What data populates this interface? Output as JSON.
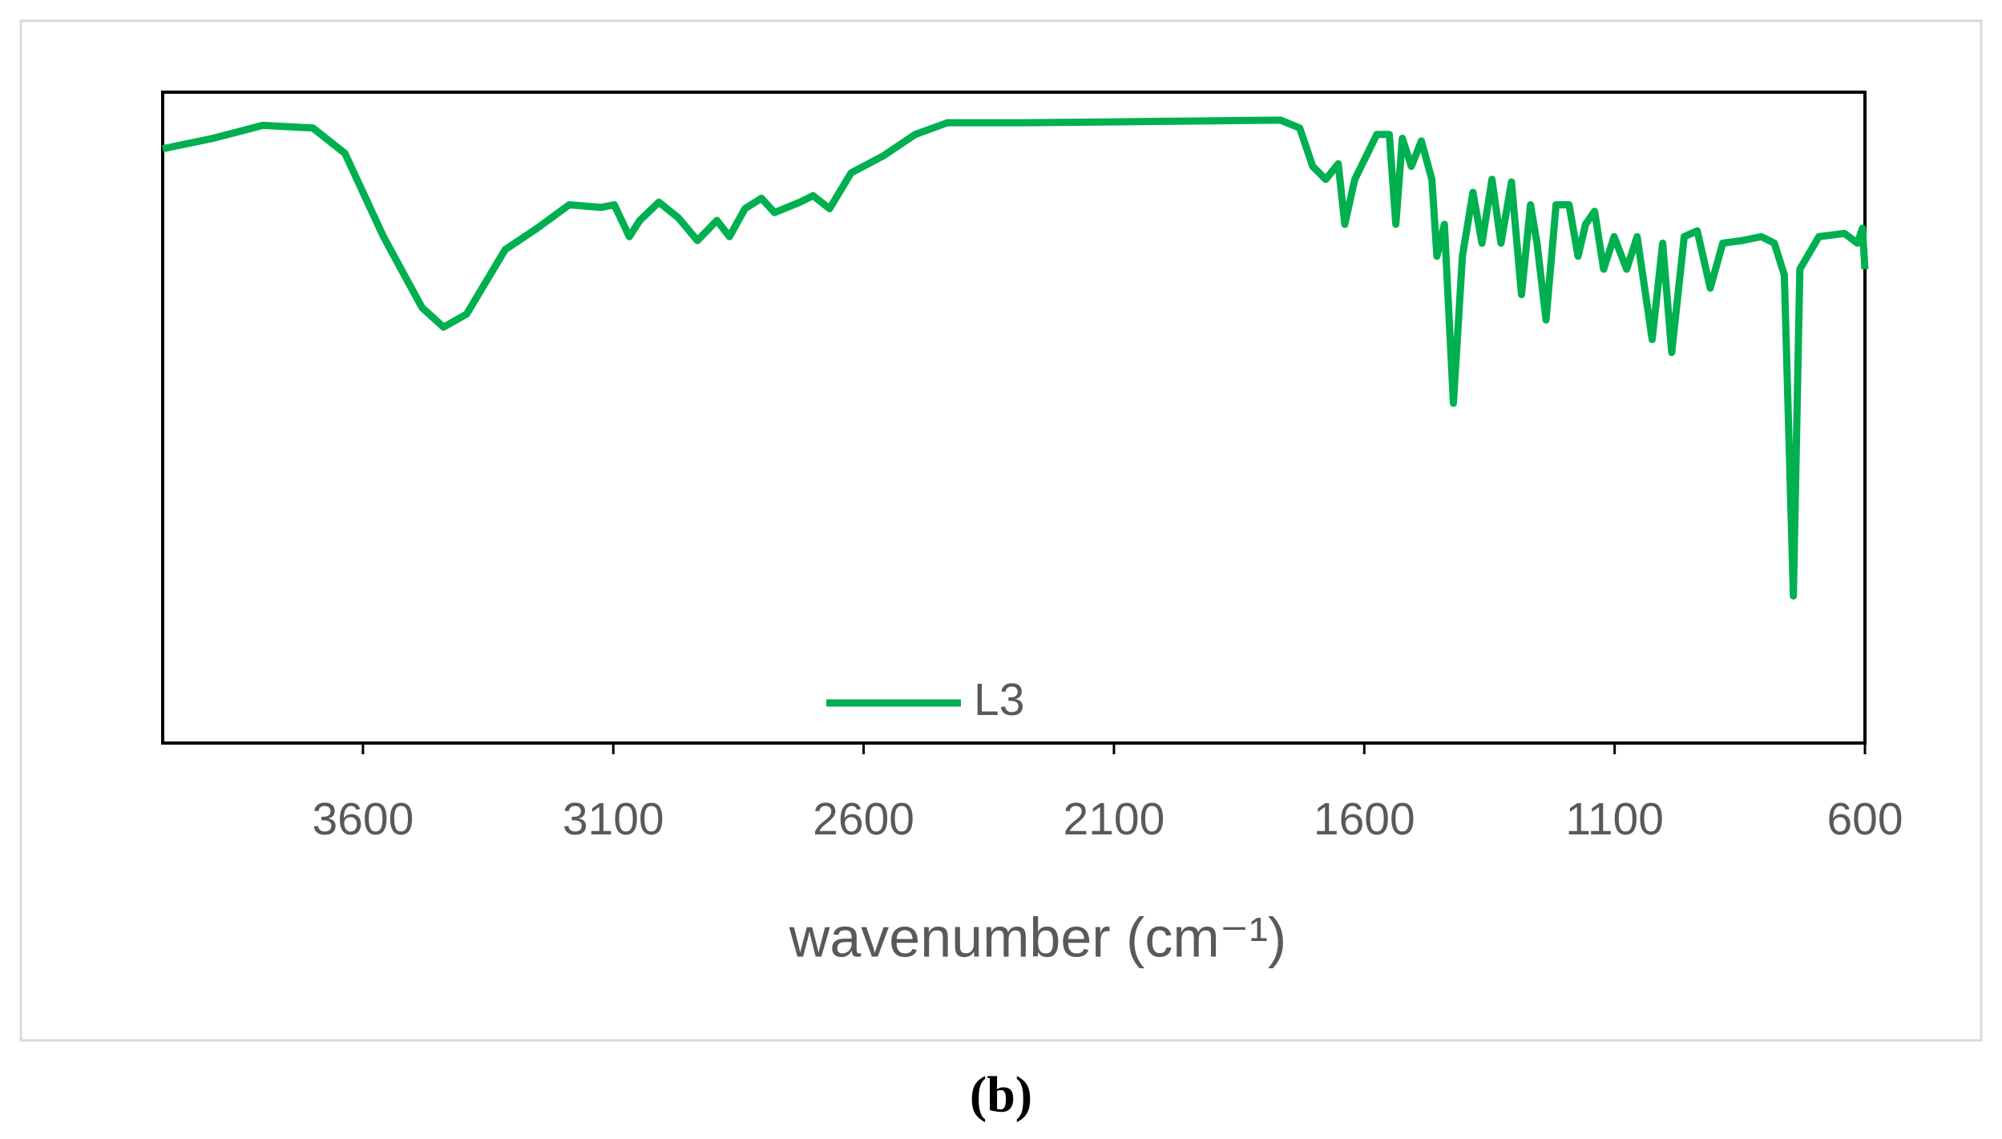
{
  "chart_data": {
    "type": "line",
    "caption": "(b)",
    "xlabel": "wavenumber (cm⁻¹)",
    "x": [
      4000,
      3900,
      3800,
      3700,
      3636,
      3559,
      3482,
      3439,
      3393,
      3316,
      3252,
      3188,
      3124,
      3098,
      3068,
      3047,
      3009,
      2970,
      2932,
      2893,
      2868,
      2837,
      2804,
      2778,
      2727,
      2701,
      2668,
      2625,
      2561,
      2497,
      2433,
      2279,
      2023,
      1767,
      1729,
      1703,
      1677,
      1652,
      1639,
      1619,
      1575,
      1550,
      1537,
      1524,
      1506,
      1486,
      1465,
      1455,
      1440,
      1422,
      1404,
      1383,
      1365,
      1345,
      1327,
      1306,
      1286,
      1268,
      1255,
      1237,
      1217,
      1191,
      1173,
      1158,
      1140,
      1122,
      1101,
      1076,
      1055,
      1025,
      1004,
      986,
      961,
      935,
      909,
      884,
      845,
      807,
      781,
      761,
      743,
      730,
      692,
      641,
      615,
      605,
      600
    ],
    "series": [
      {
        "name": "L3",
        "color": "#00b050",
        "values": [
          91.3,
          92.9,
          94.9,
          94.5,
          90.6,
          77.8,
          66.9,
          63.9,
          65.9,
          75.8,
          79.1,
          82.7,
          82.3,
          82.7,
          77.8,
          80.3,
          83.1,
          80.7,
          77.2,
          80.3,
          77.8,
          82.1,
          83.7,
          81.5,
          83.1,
          84.1,
          82.1,
          87.6,
          90.2,
          93.5,
          95.3,
          95.3,
          95.5,
          95.7,
          94.5,
          88.6,
          86.6,
          89.0,
          79.7,
          86.6,
          93.5,
          93.5,
          79.7,
          92.9,
          88.6,
          92.5,
          86.6,
          74.8,
          79.7,
          52.2,
          74.8,
          84.6,
          76.8,
          86.6,
          76.8,
          86.2,
          68.9,
          82.7,
          76.8,
          65.0,
          82.7,
          82.7,
          74.8,
          79.7,
          81.7,
          72.8,
          77.8,
          72.8,
          77.8,
          62.0,
          76.8,
          60.0,
          77.8,
          78.7,
          69.9,
          76.8,
          77.2,
          77.8,
          76.8,
          71.9,
          22.6,
          72.8,
          77.8,
          78.3,
          76.8,
          79.1,
          72.8
        ]
      }
    ],
    "xlim": [
      4000,
      600
    ],
    "xticks": [
      3600,
      3100,
      2600,
      2100,
      1600,
      1100,
      600
    ],
    "ylim": [
      0,
      100
    ],
    "legend": "bottom"
  }
}
